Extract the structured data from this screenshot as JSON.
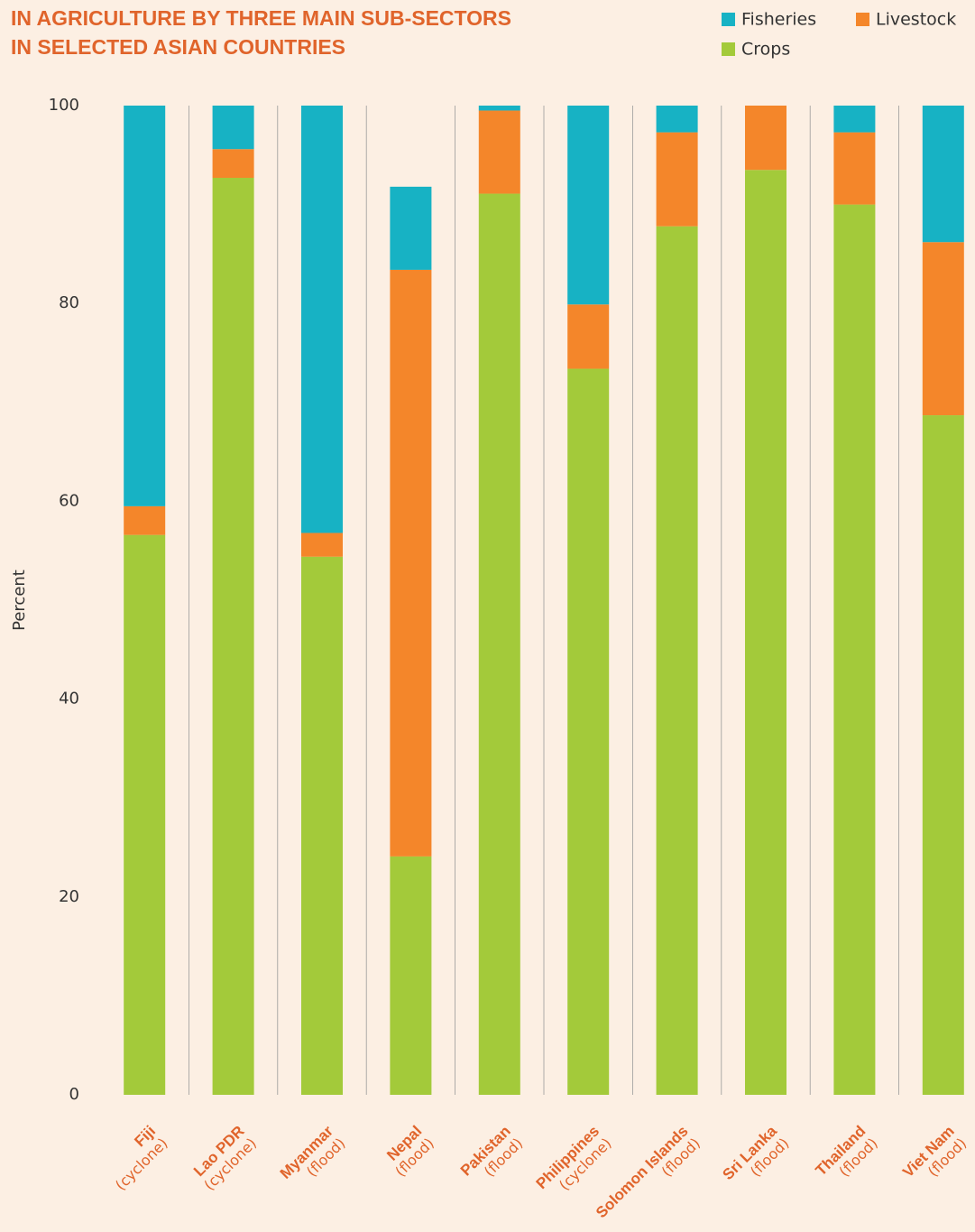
{
  "chart_data": {
    "type": "stacked_bar",
    "title_lines": [
      "IN AGRICULTURE BY THREE MAIN SUB-SECTORS",
      "IN SELECTED ASIAN COUNTRIES"
    ],
    "y_label": "Percent",
    "categories": [
      "Fiji",
      "Lao PDR",
      "Myanmar",
      "Nepal",
      "Pakistan",
      "Philippines",
      "Solomon Islands",
      "Sri Lanka",
      "Thailand",
      "Viet Nam"
    ],
    "category_notes": [
      "(cyclone)",
      "(cyclone)",
      "(flood)",
      "(flood)",
      "(flood)",
      "(cyclone)",
      "(flood)",
      "(flood)",
      "(flood)",
      "(flood)"
    ],
    "series": [
      {
        "name": "Fisheries",
        "color": "#17b2c4",
        "values": [
          40.5,
          4.4,
          43.2,
          8.4,
          0.5,
          20.1,
          2.7,
          0,
          2.7,
          13.8
        ]
      },
      {
        "name": "Livestock",
        "color": "#f4862a",
        "values": [
          2.9,
          2.9,
          2.4,
          59.3,
          8.4,
          6.5,
          9.5,
          6.5,
          7.3,
          17.5
        ]
      },
      {
        "name": "Crops",
        "color": "#a3ca3a",
        "values": [
          56.6,
          92.7,
          54.4,
          24.1,
          91.1,
          73.4,
          87.8,
          93.5,
          90.0,
          68.7
        ]
      }
    ],
    "ylim": [
      0,
      100
    ],
    "yticks": [
      0,
      20,
      40,
      60,
      80,
      100
    ]
  }
}
